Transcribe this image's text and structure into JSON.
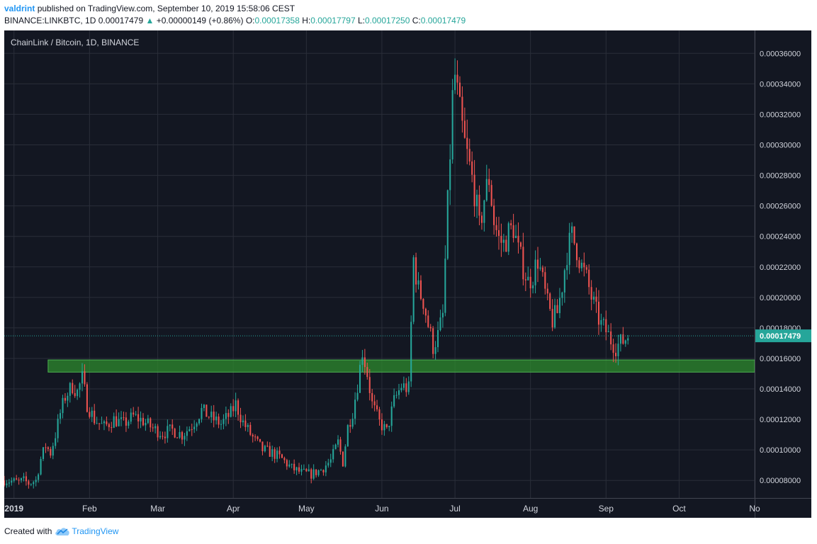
{
  "header": {
    "author": "valdrint",
    "published_text": "published on TradingView.com, September 10, 2019 15:58:06 CEST",
    "symbol": "BINANCE:LINKBTC, 1D",
    "last_price": "0.00017479",
    "change": "+0.00000149 (+0.86%)",
    "o_label": "O:",
    "o_value": "0.00017358",
    "h_label": "H:",
    "h_value": "0.00017797",
    "l_label": "L:",
    "l_value": "0.00017250",
    "c_label": "C:",
    "c_value": "0.00017479"
  },
  "chart_title": "ChainLink / Bitcoin, 1D, BINANCE",
  "footer": {
    "created_with": "Created with",
    "brand": "TradingView"
  },
  "colors": {
    "background": "#131722",
    "grid": "#2a2e39",
    "up": "#26a69a",
    "down": "#ef5350",
    "zone_fill": "#2e8b2e",
    "zone_border": "#4caf50",
    "price_line": "#26a69a",
    "axis_text": "#d1d4dc"
  },
  "chart_data": {
    "type": "candlestick",
    "title": "ChainLink / Bitcoin, 1D, BINANCE",
    "x_ticks": [
      "2019",
      "Feb",
      "Mar",
      "Apr",
      "May",
      "Jun",
      "Jul",
      "Aug",
      "Sep",
      "Oct",
      "No"
    ],
    "x_tick_dates": [
      "2019-01-01",
      "2019-02-01",
      "2019-03-01",
      "2019-04-01",
      "2019-05-01",
      "2019-06-01",
      "2019-07-01",
      "2019-08-01",
      "2019-09-01",
      "2019-10-01",
      "2019-11-01"
    ],
    "x_range": [
      "2018-12-28",
      "2019-11-01"
    ],
    "y_ticks": [
      "0.00008000",
      "0.00010000",
      "0.00012000",
      "0.00014000",
      "0.00016000",
      "0.00018000",
      "0.00020000",
      "0.00022000",
      "0.00024000",
      "0.00026000",
      "0.00028000",
      "0.00030000",
      "0.00032000",
      "0.00034000",
      "0.00036000"
    ],
    "y_range": [
      6.85e-05,
      0.000375
    ],
    "current_price": 0.00017479,
    "current_price_label": "0.00017479",
    "support_zone": {
      "from_date": "2019-01-15",
      "to_date": "2019-11-01",
      "low": 0.000151,
      "high": 0.000159
    },
    "close_path": [
      [
        "2018-12-28",
        8e-05
      ],
      [
        "2019-01-03",
        7.9e-05
      ],
      [
        "2019-01-05",
        8e-05
      ],
      [
        "2019-01-07",
        7.8e-05
      ],
      [
        "2019-01-10",
        8e-05
      ],
      [
        "2019-01-12",
        9.4e-05
      ],
      [
        "2019-01-14",
        0.000103
      ],
      [
        "2019-01-16",
        9.8e-05
      ],
      [
        "2019-01-18",
        0.00011
      ],
      [
        "2019-01-20",
        0.000124
      ],
      [
        "2019-01-22",
        0.000135
      ],
      [
        "2019-01-25",
        0.000142
      ],
      [
        "2019-01-27",
        0.000138
      ],
      [
        "2019-01-29",
        0.000147
      ],
      [
        "2019-01-31",
        0.00013
      ],
      [
        "2019-02-03",
        0.00012
      ],
      [
        "2019-02-07",
        0.000115
      ],
      [
        "2019-02-11",
        0.00012
      ],
      [
        "2019-02-15",
        0.000117
      ],
      [
        "2019-02-19",
        0.000122
      ],
      [
        "2019-02-23",
        0.000119
      ],
      [
        "2019-02-27",
        0.000114
      ],
      [
        "2019-03-03",
        0.000111
      ],
      [
        "2019-03-07",
        0.000113
      ],
      [
        "2019-03-11",
        0.00011
      ],
      [
        "2019-03-15",
        0.000116
      ],
      [
        "2019-03-19",
        0.000126
      ],
      [
        "2019-03-23",
        0.000121
      ],
      [
        "2019-03-27",
        0.000117
      ],
      [
        "2019-03-31",
        0.000124
      ],
      [
        "2019-04-02",
        0.00013
      ],
      [
        "2019-04-05",
        0.000118
      ],
      [
        "2019-04-09",
        0.000108
      ],
      [
        "2019-04-13",
        0.0001
      ],
      [
        "2019-04-17",
        9.8e-05
      ],
      [
        "2019-04-21",
        9.4e-05
      ],
      [
        "2019-04-25",
        8.8e-05
      ],
      [
        "2019-04-29",
        8.5e-05
      ],
      [
        "2019-05-03",
        8.4e-05
      ],
      [
        "2019-05-07",
        8.7e-05
      ],
      [
        "2019-05-11",
        9.3e-05
      ],
      [
        "2019-05-14",
        0.000105
      ],
      [
        "2019-05-16",
        9.2e-05
      ],
      [
        "2019-05-18",
        0.000115
      ],
      [
        "2019-05-20",
        0.000125
      ],
      [
        "2019-05-22",
        0.000143
      ],
      [
        "2019-05-24",
        0.000165
      ],
      [
        "2019-05-26",
        0.00015
      ],
      [
        "2019-05-28",
        0.00013
      ],
      [
        "2019-05-31",
        0.000118
      ],
      [
        "2019-06-03",
        0.000112
      ],
      [
        "2019-06-06",
        0.000132
      ],
      [
        "2019-06-09",
        0.000142
      ],
      [
        "2019-06-12",
        0.00014
      ],
      [
        "2019-06-14",
        0.000225
      ],
      [
        "2019-06-16",
        0.000205
      ],
      [
        "2019-06-18",
        0.000198
      ],
      [
        "2019-06-20",
        0.000182
      ],
      [
        "2019-06-22",
        0.000168
      ],
      [
        "2019-06-24",
        0.000175
      ],
      [
        "2019-06-26",
        0.000188
      ],
      [
        "2019-06-28",
        0.00026
      ],
      [
        "2019-06-30",
        0.00033
      ],
      [
        "2019-07-01",
        0.000345
      ],
      [
        "2019-07-03",
        0.00032
      ],
      [
        "2019-07-05",
        0.0003
      ],
      [
        "2019-07-07",
        0.000285
      ],
      [
        "2019-07-09",
        0.00027
      ],
      [
        "2019-07-11",
        0.000245
      ],
      [
        "2019-07-13",
        0.000265
      ],
      [
        "2019-07-15",
        0.000278
      ],
      [
        "2019-07-17",
        0.00025
      ],
      [
        "2019-07-19",
        0.000238
      ],
      [
        "2019-07-21",
        0.000235
      ],
      [
        "2019-07-23",
        0.000242
      ],
      [
        "2019-07-25",
        0.000246
      ],
      [
        "2019-07-27",
        0.00023
      ],
      [
        "2019-07-29",
        0.00022
      ],
      [
        "2019-07-31",
        0.00021
      ],
      [
        "2019-08-02",
        0.000215
      ],
      [
        "2019-08-04",
        0.000225
      ],
      [
        "2019-08-06",
        0.00021
      ],
      [
        "2019-08-08",
        0.000195
      ],
      [
        "2019-08-10",
        0.000185
      ],
      [
        "2019-08-12",
        0.00019
      ],
      [
        "2019-08-14",
        0.000208
      ],
      [
        "2019-08-16",
        0.00023
      ],
      [
        "2019-08-18",
        0.00024
      ],
      [
        "2019-08-20",
        0.000232
      ],
      [
        "2019-08-22",
        0.00022
      ],
      [
        "2019-08-24",
        0.000212
      ],
      [
        "2019-08-26",
        0.0002
      ],
      [
        "2019-08-28",
        0.00019
      ],
      [
        "2019-08-30",
        0.000182
      ],
      [
        "2019-09-01",
        0.000178
      ],
      [
        "2019-09-03",
        0.000172
      ],
      [
        "2019-09-05",
        0.000168
      ],
      [
        "2019-09-07",
        0.00017
      ],
      [
        "2019-09-09",
        0.000173
      ],
      [
        "2019-09-10",
        0.000175
      ]
    ],
    "grid": true
  }
}
